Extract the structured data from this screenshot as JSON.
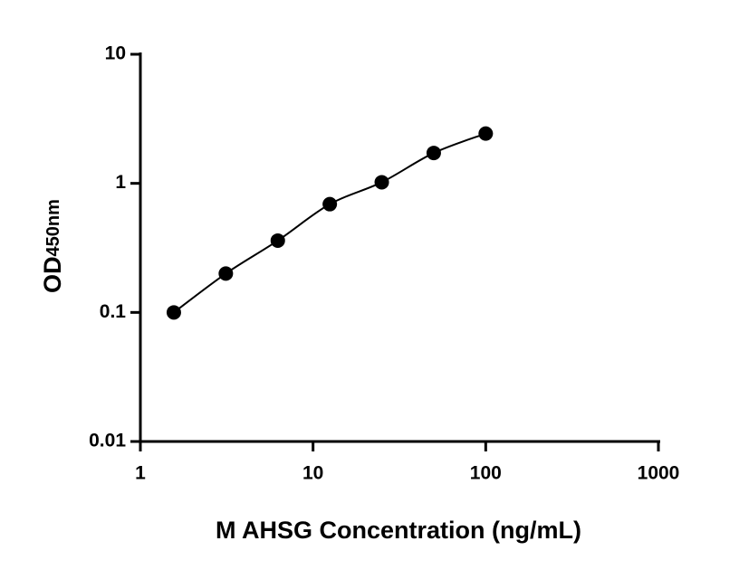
{
  "chart_data": {
    "type": "scatter",
    "x_label": "M AHSG Concentration (ng/mL)",
    "y_label": "OD",
    "y_label_sub": "450nm",
    "x": [
      1.5625,
      3.125,
      6.25,
      12.5,
      25,
      50,
      100
    ],
    "series": [
      {
        "color": "#000000",
        "values": [
          0.1,
          0.2,
          0.36,
          0.69,
          1.02,
          1.72,
          2.43
        ]
      }
    ],
    "xscale": "log",
    "yscale": "log",
    "xlim": [
      1,
      1000
    ],
    "xticks": [
      1,
      10,
      100,
      1000
    ],
    "ylim": [
      0.01,
      10
    ],
    "yticks": [
      0.01,
      0.1,
      1,
      10
    ],
    "grid": false,
    "fit_curve": true
  }
}
